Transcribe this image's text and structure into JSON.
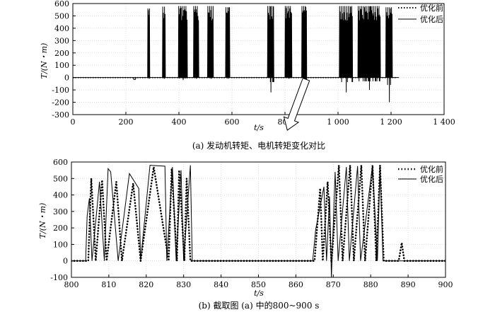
{
  "chart_data": [
    {
      "type": "line",
      "caption": "(a) 发动机转矩、电机转矩变化对比",
      "xlabel": "t/s",
      "ylabel": "T/(N・m)",
      "xlim": [
        0,
        1400
      ],
      "ylim": [
        -300,
        600
      ],
      "xticks": [
        0,
        200,
        400,
        600,
        800,
        "1 000",
        "1 200",
        "1 400"
      ],
      "yticks": [
        -300,
        -200,
        -100,
        0,
        100,
        200,
        300,
        400,
        500,
        600
      ],
      "legend": {
        "position": "top-right",
        "entries": [
          "优化前",
          "优化后"
        ]
      },
      "series": [
        {
          "name": "优化前",
          "style": "dotted",
          "points": [
            [
              0,
              0
            ],
            [
              1220,
              0
            ]
          ]
        },
        {
          "name": "优化后",
          "style": "solid",
          "baseline": [
            [
              0,
              0
            ],
            [
              230,
              0
            ],
            [
              1230,
              0
            ]
          ],
          "bursts": [
            {
              "start": 282,
              "end": 290,
              "peak": 560,
              "low": -10
            },
            {
              "start": 338,
              "end": 349,
              "peak": 575,
              "low": -10
            },
            {
              "start": 398,
              "end": 432,
              "peak": 580,
              "low": -20
            },
            {
              "start": 455,
              "end": 475,
              "peak": 580,
              "low": -10
            },
            {
              "start": 508,
              "end": 530,
              "peak": 580,
              "low": -10
            },
            {
              "start": 576,
              "end": 592,
              "peak": 570,
              "low": -10
            },
            {
              "start": 734,
              "end": 758,
              "peak": 580,
              "low": -120
            },
            {
              "start": 800,
              "end": 826,
              "peak": 580,
              "low": -10
            },
            {
              "start": 863,
              "end": 882,
              "peak": 580,
              "low": -110
            },
            {
              "start": 1005,
              "end": 1055,
              "peak": 580,
              "low": -120
            },
            {
              "start": 1075,
              "end": 1160,
              "peak": 580,
              "low": -100
            },
            {
              "start": 1180,
              "end": 1205,
              "peak": 570,
              "low": -200
            }
          ]
        }
      ],
      "annotation": {
        "type": "zoom-arrow",
        "from_x": 880,
        "to_x": 830
      }
    },
    {
      "type": "line",
      "caption": "(b) 截取图 (a) 中的800~900 s",
      "xlabel": "t/s",
      "ylabel": "T/(N・m)",
      "xlim": [
        800,
        900
      ],
      "ylim": [
        -100,
        600
      ],
      "xticks": [
        800,
        810,
        820,
        830,
        840,
        850,
        860,
        870,
        880,
        890,
        900
      ],
      "yticks": [
        -100,
        0,
        100,
        200,
        300,
        400,
        500,
        600
      ],
      "legend": {
        "position": "top-right",
        "entries": [
          "优化前",
          "优化后"
        ]
      },
      "series": [
        {
          "name": "优化前",
          "style": "dotted",
          "points": [
            [
              800,
              0
            ],
            [
              804.5,
              0
            ],
            [
              805.3,
              500
            ],
            [
              806.5,
              0
            ],
            [
              808.2,
              490
            ],
            [
              809.4,
              0
            ],
            [
              812,
              480
            ],
            [
              813.5,
              0
            ],
            [
              816.5,
              470
            ],
            [
              818.5,
              0
            ],
            [
              822,
              570
            ],
            [
              826,
              0
            ],
            [
              826.8,
              560
            ],
            [
              828.2,
              0
            ],
            [
              828.8,
              550
            ],
            [
              830.2,
              0
            ],
            [
              830.8,
              500
            ],
            [
              831.8,
              0
            ],
            [
              865,
              0
            ],
            [
              866.5,
              440
            ],
            [
              867.2,
              0
            ],
            [
              868.5,
              480
            ],
            [
              869.5,
              -10
            ],
            [
              871.5,
              580
            ],
            [
              872.5,
              0
            ],
            [
              874.5,
              580
            ],
            [
              875.5,
              0
            ],
            [
              877.5,
              580
            ],
            [
              878.5,
              0
            ],
            [
              880.5,
              580
            ],
            [
              881.5,
              0
            ],
            [
              882.5,
              580
            ],
            [
              883.5,
              0
            ],
            [
              887.5,
              0
            ],
            [
              888.3,
              110
            ],
            [
              889,
              0
            ],
            [
              900,
              0
            ]
          ]
        },
        {
          "name": "优化后",
          "style": "solid",
          "points": [
            [
              800,
              0
            ],
            [
              803.8,
              0
            ],
            [
              804.2,
              270
            ],
            [
              804.8,
              380
            ],
            [
              805.5,
              0
            ],
            [
              807.5,
              480
            ],
            [
              808.8,
              0
            ],
            [
              809.8,
              560
            ],
            [
              810.5,
              540
            ],
            [
              812.5,
              0
            ],
            [
              815.5,
              530
            ],
            [
              818,
              440
            ],
            [
              818.5,
              0
            ],
            [
              821,
              580
            ],
            [
              825,
              575
            ],
            [
              825.5,
              0
            ],
            [
              827,
              570
            ],
            [
              828,
              0
            ],
            [
              829.3,
              550
            ],
            [
              830,
              0
            ],
            [
              831.8,
              580
            ],
            [
              832.3,
              0
            ],
            [
              864.5,
              0
            ],
            [
              865.3,
              190
            ],
            [
              867.5,
              450
            ],
            [
              868.2,
              0
            ],
            [
              869,
              390
            ],
            [
              869.5,
              -100
            ],
            [
              870.5,
              540
            ],
            [
              871.3,
              0
            ],
            [
              873.5,
              570
            ],
            [
              874.3,
              0
            ],
            [
              876.5,
              575
            ],
            [
              877.3,
              0
            ],
            [
              880.5,
              580
            ],
            [
              881.8,
              0
            ],
            [
              882.5,
              580
            ],
            [
              883.3,
              0
            ],
            [
              900,
              0
            ]
          ]
        }
      ]
    }
  ]
}
